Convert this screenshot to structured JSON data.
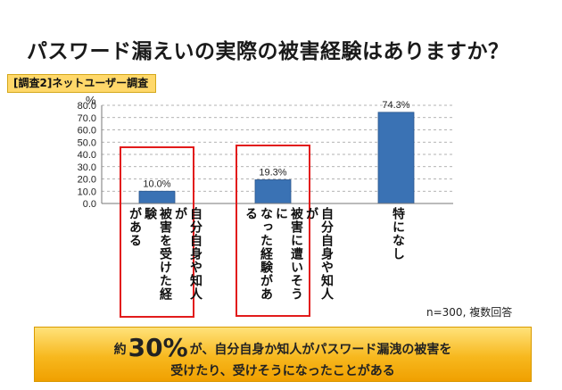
{
  "title": "パスワード漏えいの実際の被害経験はありますか？",
  "survey_tag": "[調査2]ネットユーザー調査",
  "chart_data": {
    "type": "bar",
    "y_unit": "%",
    "ylim": [
      0,
      80
    ],
    "y_ticks": [
      "80.0",
      "70.0",
      "60.0",
      "50.0",
      "40.0",
      "30.0",
      "20.0",
      "10.0",
      "0.0"
    ],
    "categories": [
      "自分自身や知人が被害を受けた経験がある",
      "自分自身や知人が被害に遭いそうになった経験がある",
      "特になし"
    ],
    "category_lines": [
      [
        "自分自身や知人が",
        "被害を受けた経験",
        "がある"
      ],
      [
        "自分自身や知人が",
        "被害に遭いそうに",
        "なった経験がある"
      ],
      [
        "特になし"
      ]
    ],
    "values": [
      10.0,
      19.3,
      74.3
    ],
    "value_labels": [
      "10.0%",
      "19.3%",
      "74.3%"
    ],
    "bar_color": "#3a72b4",
    "highlight_color": "#e21b1b"
  },
  "note": "n=300, 複数回答",
  "banner": {
    "prefix": "約",
    "highlight": "30%",
    "line1_rest": "が、自分自身か知人がパスワード漏洩の被害を",
    "line2": "受けたり、受けそうになったことがある",
    "color": "#f7b81e"
  }
}
